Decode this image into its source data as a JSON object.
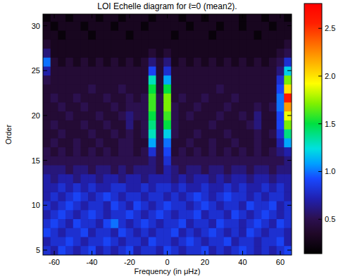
{
  "chart_data": {
    "type": "heatmap",
    "title": "LOI Echelle diagram for ℓ=0 (mean2).",
    "x_label": "Frequency (in μHz)",
    "y_label": "Order",
    "xlim": [
      -66,
      66
    ],
    "ylim": [
      4.45,
      31.3
    ],
    "xticks": [
      -60,
      -40,
      -20,
      0,
      20,
      40,
      60
    ],
    "yticks": [
      5,
      10,
      15,
      20,
      25,
      30
    ],
    "x": [
      -64,
      -60,
      -56,
      -52,
      -48,
      -44,
      -40,
      -36,
      -32,
      -28,
      -24,
      -20,
      -16,
      -12,
      -8,
      -4,
      0,
      4,
      8,
      12,
      16,
      20,
      24,
      28,
      32,
      36,
      40,
      44,
      48,
      52,
      56,
      60,
      64
    ],
    "y": [
      5,
      6,
      7,
      8,
      9,
      10,
      11,
      12,
      13,
      14,
      15,
      16,
      17,
      18,
      19,
      20,
      21,
      22,
      23,
      24,
      25,
      26,
      27,
      28,
      29,
      30,
      31
    ],
    "z": [
      [
        0.8,
        0.7,
        0.9,
        0.8,
        0.7,
        0.8,
        0.9,
        0.7,
        0.8,
        0.7,
        0.8,
        0.9,
        0.7,
        0.8,
        0.8,
        0.7,
        0.9,
        0.8,
        0.7,
        0.8,
        0.8,
        0.9,
        0.7,
        0.8,
        0.7,
        0.8,
        0.9,
        0.8,
        0.7,
        0.8,
        0.7,
        0.8,
        0.9
      ],
      [
        0.7,
        0.8,
        0.8,
        0.9,
        0.8,
        0.7,
        0.8,
        0.8,
        0.9,
        0.8,
        0.7,
        0.8,
        0.8,
        0.7,
        0.9,
        0.8,
        0.8,
        0.7,
        0.8,
        0.9,
        0.8,
        0.7,
        0.8,
        0.8,
        0.9,
        0.7,
        0.8,
        0.8,
        0.7,
        0.8,
        0.8,
        0.9,
        0.7
      ],
      [
        0.9,
        0.8,
        0.7,
        0.8,
        0.8,
        0.9,
        0.7,
        0.8,
        0.8,
        0.7,
        0.9,
        0.8,
        0.7,
        0.8,
        0.7,
        0.8,
        0.8,
        0.9,
        0.7,
        0.8,
        0.7,
        0.8,
        0.9,
        0.8,
        0.7,
        0.8,
        0.7,
        0.9,
        0.8,
        0.7,
        0.8,
        0.8,
        0.7
      ],
      [
        0.8,
        0.9,
        0.8,
        0.7,
        0.9,
        0.8,
        0.8,
        0.7,
        0.9,
        1.0,
        0.8,
        0.7,
        0.8,
        0.9,
        0.8,
        0.7,
        0.8,
        0.8,
        0.9,
        0.7,
        0.8,
        0.8,
        0.7,
        0.9,
        0.8,
        0.8,
        0.7,
        0.8,
        0.9,
        0.8,
        0.7,
        0.9,
        0.8
      ],
      [
        0.7,
        0.8,
        0.9,
        0.8,
        0.7,
        0.8,
        0.9,
        0.8,
        0.7,
        0.8,
        0.8,
        0.9,
        0.8,
        0.7,
        0.8,
        0.9,
        0.8,
        0.7,
        0.8,
        0.8,
        0.9,
        0.7,
        0.8,
        0.8,
        0.7,
        0.9,
        0.8,
        0.7,
        0.8,
        0.9,
        0.8,
        0.7,
        0.8
      ],
      [
        0.8,
        0.7,
        0.8,
        0.9,
        0.8,
        0.7,
        0.8,
        0.8,
        0.7,
        0.9,
        0.8,
        0.7,
        0.9,
        0.8,
        0.7,
        0.8,
        0.9,
        0.8,
        0.8,
        0.7,
        0.8,
        0.9,
        0.8,
        0.7,
        0.8,
        0.8,
        0.7,
        0.9,
        0.8,
        0.8,
        0.9,
        0.7,
        0.8
      ],
      [
        0.7,
        0.8,
        0.7,
        0.8,
        0.9,
        0.8,
        0.7,
        0.8,
        0.9,
        0.8,
        0.7,
        0.8,
        0.8,
        0.7,
        0.8,
        0.8,
        0.7,
        0.8,
        0.7,
        0.8,
        0.9,
        0.8,
        0.7,
        0.8,
        0.9,
        0.8,
        0.8,
        0.7,
        0.8,
        0.7,
        0.8,
        0.8,
        0.7
      ],
      [
        0.7,
        0.7,
        0.8,
        0.7,
        0.8,
        0.7,
        0.8,
        0.7,
        0.7,
        0.8,
        0.8,
        0.7,
        0.7,
        0.8,
        0.7,
        0.8,
        0.8,
        0.7,
        0.8,
        0.7,
        0.7,
        0.8,
        0.7,
        0.7,
        0.8,
        0.7,
        0.8,
        0.7,
        0.7,
        0.8,
        0.7,
        0.8,
        0.7
      ],
      [
        0.7,
        0.6,
        0.7,
        0.7,
        0.6,
        0.7,
        0.7,
        0.6,
        0.7,
        0.7,
        0.6,
        0.7,
        0.7,
        0.6,
        0.7,
        0.7,
        0.7,
        0.6,
        0.7,
        0.6,
        0.7,
        0.7,
        0.6,
        0.7,
        0.6,
        0.7,
        0.7,
        0.6,
        0.7,
        0.7,
        0.6,
        0.7,
        0.7
      ],
      [
        0.6,
        0.6,
        0.6,
        0.5,
        0.6,
        0.6,
        0.5,
        0.6,
        0.6,
        0.5,
        0.6,
        0.5,
        0.6,
        0.6,
        0.6,
        0.5,
        0.7,
        0.6,
        0.5,
        0.6,
        0.6,
        0.5,
        0.6,
        0.6,
        0.5,
        0.6,
        0.6,
        0.5,
        0.6,
        0.6,
        0.5,
        0.6,
        0.6
      ],
      [
        0.5,
        0.5,
        0.5,
        0.5,
        0.5,
        0.5,
        0.5,
        0.5,
        0.5,
        0.5,
        0.5,
        0.5,
        0.5,
        0.5,
        0.6,
        0.5,
        0.8,
        0.5,
        0.5,
        0.5,
        0.5,
        0.5,
        0.5,
        0.5,
        0.5,
        0.5,
        0.5,
        0.5,
        0.5,
        0.5,
        0.5,
        0.5,
        0.6
      ],
      [
        0.5,
        0.4,
        0.5,
        0.4,
        0.5,
        0.4,
        0.5,
        0.4,
        0.5,
        0.4,
        0.5,
        0.5,
        0.4,
        0.5,
        0.8,
        0.5,
        0.9,
        0.4,
        0.5,
        0.4,
        0.5,
        0.4,
        0.5,
        0.4,
        0.5,
        0.4,
        0.5,
        0.4,
        0.5,
        0.4,
        0.5,
        0.6,
        0.7
      ],
      [
        0.4,
        0.5,
        0.4,
        0.4,
        0.5,
        0.4,
        0.4,
        0.5,
        0.4,
        0.4,
        0.5,
        0.5,
        0.4,
        0.4,
        1.1,
        0.5,
        1.0,
        0.4,
        0.4,
        0.5,
        0.4,
        0.4,
        0.5,
        0.4,
        0.4,
        0.5,
        0.4,
        0.4,
        0.5,
        0.4,
        0.4,
        0.7,
        1.1
      ],
      [
        0.4,
        0.4,
        0.5,
        0.4,
        0.4,
        0.4,
        0.5,
        0.4,
        0.4,
        0.5,
        0.4,
        0.5,
        0.4,
        0.5,
        1.3,
        0.5,
        1.2,
        0.5,
        0.4,
        0.4,
        0.5,
        0.4,
        0.4,
        0.4,
        0.5,
        0.4,
        0.4,
        0.4,
        0.5,
        0.4,
        0.5,
        0.8,
        1.4
      ],
      [
        0.4,
        0.5,
        0.4,
        0.4,
        0.4,
        0.5,
        0.4,
        0.4,
        0.5,
        0.4,
        0.4,
        0.6,
        0.4,
        0.5,
        1.4,
        0.5,
        1.5,
        0.5,
        0.4,
        0.4,
        0.4,
        0.4,
        0.5,
        0.4,
        0.4,
        0.4,
        0.4,
        0.5,
        0.6,
        0.4,
        0.4,
        0.9,
        1.7
      ],
      [
        0.4,
        0.4,
        0.4,
        0.5,
        0.4,
        0.4,
        0.4,
        0.5,
        0.4,
        0.4,
        0.5,
        0.6,
        0.5,
        0.5,
        1.5,
        0.5,
        1.6,
        0.5,
        0.4,
        0.5,
        0.4,
        0.4,
        0.4,
        0.5,
        0.4,
        0.4,
        0.5,
        0.4,
        0.6,
        0.4,
        0.4,
        0.9,
        1.9
      ],
      [
        0.4,
        0.4,
        0.5,
        0.4,
        0.4,
        0.5,
        0.4,
        0.4,
        0.4,
        0.5,
        0.4,
        0.5,
        0.5,
        0.5,
        1.6,
        0.5,
        1.7,
        0.5,
        0.4,
        0.4,
        0.5,
        0.4,
        0.4,
        0.4,
        0.5,
        0.4,
        0.4,
        0.4,
        0.5,
        0.4,
        0.5,
        1.0,
        2.2
      ],
      [
        0.4,
        0.5,
        0.4,
        0.4,
        0.5,
        0.4,
        0.4,
        0.4,
        0.5,
        0.4,
        0.4,
        0.5,
        0.4,
        0.5,
        1.6,
        0.5,
        1.7,
        0.4,
        0.5,
        0.4,
        0.4,
        0.5,
        0.4,
        0.4,
        0.4,
        0.5,
        0.4,
        0.4,
        0.4,
        0.4,
        0.4,
        1.0,
        2.6
      ],
      [
        0.4,
        0.4,
        0.4,
        0.4,
        0.4,
        0.4,
        0.5,
        0.4,
        0.4,
        0.4,
        0.5,
        0.4,
        0.4,
        0.4,
        1.5,
        0.4,
        1.5,
        0.4,
        0.4,
        0.4,
        0.4,
        0.4,
        0.4,
        0.5,
        0.4,
        0.4,
        0.4,
        0.4,
        0.4,
        0.4,
        0.4,
        0.9,
        2.0
      ],
      [
        0.5,
        0.4,
        0.4,
        0.4,
        0.4,
        0.4,
        0.4,
        0.4,
        0.4,
        0.4,
        0.4,
        0.4,
        0.4,
        0.4,
        1.3,
        0.4,
        1.1,
        0.4,
        0.4,
        0.4,
        0.4,
        0.4,
        0.4,
        0.4,
        0.4,
        0.4,
        0.4,
        0.4,
        0.4,
        0.4,
        0.4,
        0.8,
        1.7
      ],
      [
        0.7,
        0.4,
        0.4,
        0.4,
        0.4,
        0.4,
        0.4,
        0.4,
        0.4,
        0.4,
        0.4,
        0.4,
        0.4,
        0.4,
        0.9,
        0.4,
        0.8,
        0.4,
        0.4,
        0.4,
        0.4,
        0.4,
        0.4,
        0.4,
        0.4,
        0.4,
        0.4,
        0.4,
        0.4,
        0.4,
        0.4,
        0.6,
        1.2
      ],
      [
        1.0,
        0.4,
        0.3,
        0.4,
        0.3,
        0.4,
        0.3,
        0.4,
        0.3,
        0.4,
        0.3,
        0.4,
        0.3,
        0.4,
        0.6,
        0.4,
        0.6,
        0.3,
        0.4,
        0.3,
        0.4,
        0.3,
        0.4,
        0.3,
        0.4,
        0.3,
        0.4,
        0.3,
        0.4,
        0.3,
        0.4,
        0.5,
        0.8
      ],
      [
        0.6,
        0.3,
        0.3,
        0.3,
        0.3,
        0.3,
        0.3,
        0.3,
        0.3,
        0.3,
        0.3,
        0.3,
        0.3,
        0.3,
        0.4,
        0.3,
        0.4,
        0.3,
        0.3,
        0.3,
        0.3,
        0.3,
        0.3,
        0.3,
        0.3,
        0.3,
        0.3,
        0.3,
        0.3,
        0.3,
        0.3,
        0.4,
        0.5
      ],
      [
        0.4,
        0.3,
        0.3,
        0.3,
        0.3,
        0.3,
        0.3,
        0.3,
        0.3,
        0.3,
        0.3,
        0.3,
        0.3,
        0.3,
        0.3,
        0.3,
        0.3,
        0.3,
        0.3,
        0.3,
        0.3,
        0.3,
        0.3,
        0.3,
        0.3,
        0.3,
        0.3,
        0.3,
        0.3,
        0.3,
        0.3,
        0.3,
        0.4
      ],
      [
        0.3,
        0.3,
        0.2,
        0.3,
        0.3,
        0.3,
        0.2,
        0.3,
        0.3,
        0.3,
        0.3,
        0.2,
        0.3,
        0.3,
        0.3,
        0.3,
        0.3,
        0.2,
        0.3,
        0.3,
        0.3,
        0.3,
        0.2,
        0.3,
        0.3,
        0.3,
        0.3,
        0.3,
        0.2,
        0.3,
        0.3,
        0.3,
        0.3
      ],
      [
        0.3,
        0.2,
        0.3,
        0.3,
        0.3,
        0.2,
        0.3,
        0.3,
        0.3,
        0.2,
        0.3,
        0.3,
        0.3,
        0.2,
        0.3,
        0.3,
        0.3,
        0.3,
        0.3,
        0.2,
        0.3,
        0.3,
        0.3,
        0.2,
        0.3,
        0.3,
        0.2,
        0.3,
        0.3,
        0.3,
        0.2,
        0.3,
        0.3
      ],
      [
        0.2,
        0.3,
        0.3,
        0.2,
        0.3,
        0.3,
        0.3,
        0.2,
        0.3,
        0.3,
        0.2,
        0.3,
        0.3,
        0.3,
        0.2,
        0.3,
        0.3,
        0.3,
        0.2,
        0.3,
        0.3,
        0.2,
        0.3,
        0.3,
        0.3,
        0.3,
        0.2,
        0.3,
        0.3,
        0.2,
        0.3,
        0.3,
        0.2
      ]
    ],
    "colorbar": {
      "range": [
        0.14,
        2.76
      ],
      "ticks": [
        0.5,
        {
          "value": 1,
          "label": "1.0"
        },
        1.5,
        {
          "value": 2,
          "label": "2.0"
        },
        2.5
      ]
    }
  }
}
